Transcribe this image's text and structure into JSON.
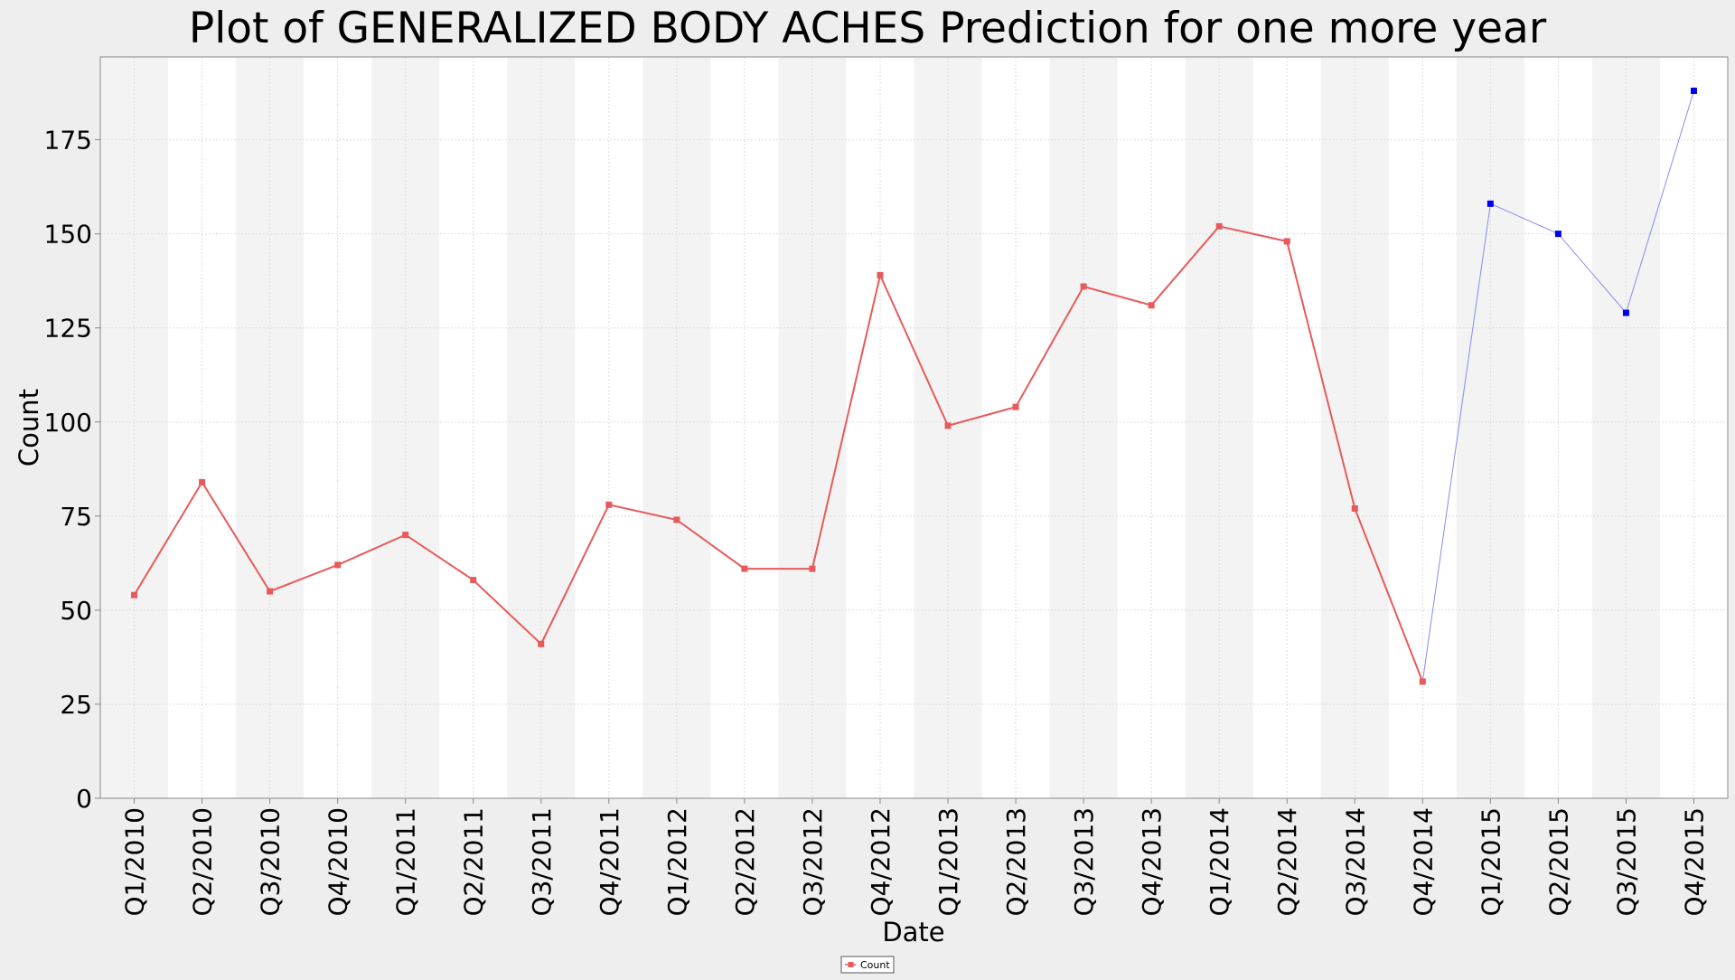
{
  "chart_data": {
    "type": "line",
    "title": "Plot of GENERALIZED BODY ACHES Prediction for one more year",
    "xlabel": "Date",
    "ylabel": "Count",
    "ylim": [
      0,
      197
    ],
    "yticks": [
      0,
      25,
      50,
      75,
      100,
      125,
      150,
      175
    ],
    "grid": true,
    "legend_position": "bottom-center",
    "categories": [
      "Q1/2010",
      "Q2/2010",
      "Q3/2010",
      "Q4/2010",
      "Q1/2011",
      "Q2/2011",
      "Q3/2011",
      "Q4/2011",
      "Q1/2012",
      "Q2/2012",
      "Q3/2012",
      "Q4/2012",
      "Q1/2013",
      "Q2/2013",
      "Q3/2013",
      "Q4/2013",
      "Q1/2014",
      "Q2/2014",
      "Q3/2014",
      "Q4/2014",
      "Q1/2015",
      "Q2/2015",
      "Q3/2015",
      "Q4/2015"
    ],
    "series": [
      {
        "name": "Count",
        "color": "#e85a5a",
        "values": [
          54,
          84,
          55,
          62,
          70,
          58,
          41,
          78,
          74,
          61,
          61,
          139,
          99,
          104,
          136,
          131,
          152,
          148,
          77,
          31,
          null,
          null,
          null,
          null
        ]
      },
      {
        "color": "#0000ee",
        "line_color": "#8a8aee",
        "values": [
          null,
          null,
          null,
          null,
          null,
          null,
          null,
          null,
          null,
          null,
          null,
          null,
          null,
          null,
          null,
          null,
          null,
          null,
          null,
          31,
          158,
          150,
          129,
          188
        ]
      }
    ]
  }
}
